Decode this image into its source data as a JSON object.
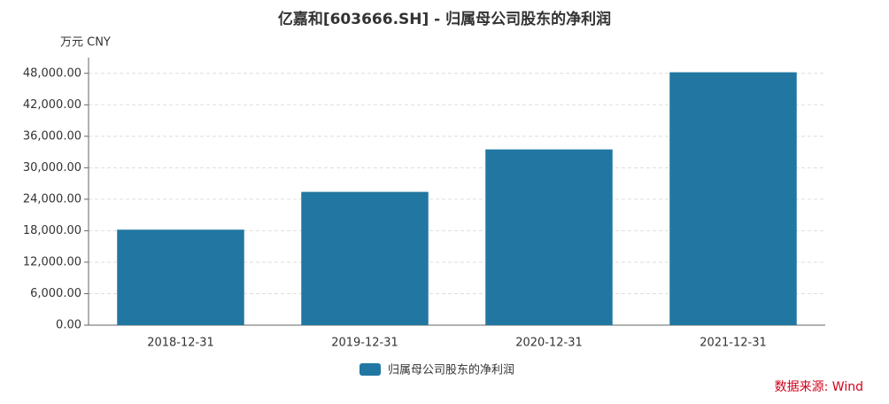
{
  "chart_data": {
    "type": "bar",
    "title": "亿嘉和[603666.SH] - 归属母公司股东的净利润",
    "y_unit": "万元  CNY",
    "source": "数据来源: Wind",
    "categories": [
      "2018-12-31",
      "2019-12-31",
      "2020-12-31",
      "2021-12-31"
    ],
    "series": [
      {
        "name": "归属母公司股东的净利润",
        "color": "#2177a1",
        "values": [
          18200,
          25400,
          33500,
          48200
        ]
      }
    ],
    "ylim": [
      0,
      51000
    ],
    "yticks": [
      {
        "value": 0,
        "label": "0.00"
      },
      {
        "value": 6000,
        "label": "6,000.00"
      },
      {
        "value": 12000,
        "label": "12,000.00"
      },
      {
        "value": 18000,
        "label": "18,000.00"
      },
      {
        "value": 24000,
        "label": "24,000.00"
      },
      {
        "value": 30000,
        "label": "30,000.00"
      },
      {
        "value": 36000,
        "label": "36,000.00"
      },
      {
        "value": 42000,
        "label": "42,000.00"
      },
      {
        "value": 48000,
        "label": "48,000.00"
      }
    ],
    "grid": true
  }
}
